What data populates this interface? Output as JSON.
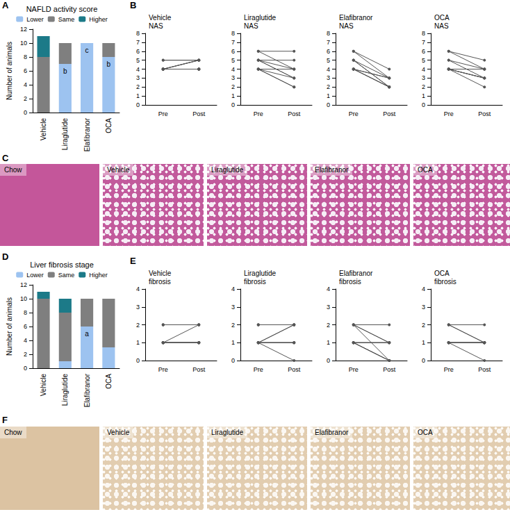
{
  "chart_data": [
    {
      "panel": "A",
      "type": "bar",
      "stacked": true,
      "title": "NAFLD activity score",
      "y_label": "Number of animals",
      "categories": [
        "Vehicle",
        "Liraglutide",
        "Elafibranor",
        "OCA"
      ],
      "series": [
        {
          "name": "Lower",
          "color": "#9dc3f0",
          "values": [
            0,
            7,
            10,
            8
          ],
          "annotations": [
            null,
            "b",
            "c",
            "b"
          ]
        },
        {
          "name": "Same",
          "color": "#7f7f7f",
          "values": [
            8,
            3,
            0,
            2
          ]
        },
        {
          "name": "Higher",
          "color": "#1c7a88",
          "values": [
            3,
            0,
            0,
            0
          ]
        }
      ],
      "ylim": [
        0,
        12
      ],
      "yticks": [
        0,
        2,
        4,
        6,
        8,
        10,
        12
      ],
      "grid": false,
      "legend": "top"
    },
    {
      "panel": "B",
      "type": "line",
      "title": "Vehicle\nNAS",
      "categories": [
        "Pre",
        "Post"
      ],
      "color": "#555555",
      "marker": "circle",
      "series": [
        {
          "values": [
            5,
            5
          ]
        },
        {
          "values": [
            5,
            5
          ]
        },
        {
          "values": [
            4,
            5
          ]
        },
        {
          "values": [
            4,
            5
          ]
        },
        {
          "values": [
            4,
            5
          ]
        },
        {
          "values": [
            4,
            4
          ]
        },
        {
          "values": [
            4,
            4
          ]
        },
        {
          "values": [
            4,
            4
          ]
        },
        {
          "values": [
            4,
            4
          ]
        },
        {
          "values": [
            4,
            4
          ]
        },
        {
          "values": [
            4,
            4
          ]
        }
      ],
      "ylim": [
        0,
        8
      ],
      "yticks": [
        0,
        1,
        2,
        3,
        4,
        5,
        6,
        7,
        8
      ],
      "grid": false
    },
    {
      "type": "line",
      "title": "Liraglutide\nNAS",
      "categories": [
        "Pre",
        "Post"
      ],
      "color": "#555555",
      "marker": "circle",
      "series": [
        {
          "values": [
            6,
            6
          ]
        },
        {
          "values": [
            6,
            4
          ]
        },
        {
          "values": [
            5,
            5
          ]
        },
        {
          "values": [
            5,
            4
          ]
        },
        {
          "values": [
            5,
            3
          ]
        },
        {
          "values": [
            4,
            4
          ]
        },
        {
          "values": [
            4,
            3
          ]
        },
        {
          "values": [
            4,
            2
          ]
        },
        {
          "values": [
            4,
            2
          ]
        },
        {
          "values": [
            5,
            3
          ]
        }
      ],
      "ylim": [
        0,
        8
      ],
      "yticks": [
        0,
        1,
        2,
        3,
        4,
        5,
        6,
        7,
        8
      ],
      "grid": false
    },
    {
      "type": "line",
      "title": "Elafibranor\nNAS",
      "categories": [
        "Pre",
        "Post"
      ],
      "color": "#555555",
      "marker": "circle",
      "series": [
        {
          "values": [
            6,
            4
          ]
        },
        {
          "values": [
            6,
            3
          ]
        },
        {
          "values": [
            5,
            3
          ]
        },
        {
          "values": [
            5,
            2
          ]
        },
        {
          "values": [
            5,
            2
          ]
        },
        {
          "values": [
            4,
            3
          ]
        },
        {
          "values": [
            4,
            2
          ]
        },
        {
          "values": [
            4,
            2
          ]
        },
        {
          "values": [
            4,
            2
          ]
        },
        {
          "values": [
            4,
            3
          ]
        }
      ],
      "ylim": [
        0,
        8
      ],
      "yticks": [
        0,
        1,
        2,
        3,
        4,
        5,
        6,
        7,
        8
      ],
      "grid": false
    },
    {
      "type": "line",
      "title": "OCA\nNAS",
      "categories": [
        "Pre",
        "Post"
      ],
      "color": "#555555",
      "marker": "circle",
      "series": [
        {
          "values": [
            6,
            5
          ]
        },
        {
          "values": [
            6,
            4
          ]
        },
        {
          "values": [
            5,
            4
          ]
        },
        {
          "values": [
            5,
            3
          ]
        },
        {
          "values": [
            4,
            3
          ]
        },
        {
          "values": [
            4,
            3
          ]
        },
        {
          "values": [
            4,
            2
          ]
        },
        {
          "values": [
            4,
            3
          ]
        },
        {
          "values": [
            4,
            4
          ]
        },
        {
          "values": [
            4,
            4
          ]
        }
      ],
      "ylim": [
        0,
        8
      ],
      "yticks": [
        0,
        1,
        2,
        3,
        4,
        5,
        6,
        7,
        8
      ],
      "grid": false
    },
    {
      "panel": "D",
      "type": "bar",
      "stacked": true,
      "title": "Liver fibrosis stage",
      "y_label": "Number of animals",
      "categories": [
        "Vehicle",
        "Liraglutide",
        "Elafibranor",
        "OCA"
      ],
      "series": [
        {
          "name": "Lower",
          "color": "#9dc3f0",
          "values": [
            0,
            1,
            6,
            3
          ],
          "annotations": [
            null,
            null,
            "a",
            null
          ]
        },
        {
          "name": "Same",
          "color": "#7f7f7f",
          "values": [
            10,
            7,
            4,
            7
          ]
        },
        {
          "name": "Higher",
          "color": "#1c7a88",
          "values": [
            1,
            2,
            0,
            0
          ]
        }
      ],
      "ylim": [
        0,
        12
      ],
      "yticks": [
        0,
        2,
        4,
        6,
        8,
        10,
        12
      ],
      "grid": false,
      "legend": "top"
    },
    {
      "panel": "E",
      "type": "line",
      "title": "Vehicle\nfibrosis",
      "categories": [
        "Pre",
        "Post"
      ],
      "color": "#555555",
      "marker": "circle",
      "series": [
        {
          "values": [
            2,
            2
          ]
        },
        {
          "values": [
            2,
            2
          ]
        },
        {
          "values": [
            2,
            2
          ]
        },
        {
          "values": [
            1,
            2
          ]
        },
        {
          "values": [
            1,
            1
          ]
        },
        {
          "values": [
            1,
            1
          ]
        },
        {
          "values": [
            1,
            1
          ]
        },
        {
          "values": [
            1,
            1
          ]
        },
        {
          "values": [
            1,
            1
          ]
        },
        {
          "values": [
            1,
            1
          ]
        },
        {
          "values": [
            1,
            1
          ]
        }
      ],
      "ylim": [
        0,
        4
      ],
      "yticks": [
        0,
        1,
        2,
        3,
        4
      ],
      "grid": false
    },
    {
      "type": "line",
      "title": "Liraglutide\nfibrosis",
      "categories": [
        "Pre",
        "Post"
      ],
      "color": "#555555",
      "marker": "circle",
      "series": [
        {
          "values": [
            2,
            2
          ]
        },
        {
          "values": [
            2,
            2
          ]
        },
        {
          "values": [
            1,
            2
          ]
        },
        {
          "values": [
            1,
            2
          ]
        },
        {
          "values": [
            1,
            1
          ]
        },
        {
          "values": [
            1,
            1
          ]
        },
        {
          "values": [
            1,
            1
          ]
        },
        {
          "values": [
            1,
            1
          ]
        },
        {
          "values": [
            2,
            2
          ]
        },
        {
          "values": [
            1,
            0
          ]
        }
      ],
      "ylim": [
        0,
        4
      ],
      "yticks": [
        0,
        1,
        2,
        3,
        4
      ],
      "grid": false
    },
    {
      "type": "line",
      "title": "Elafibranor\nfibrosis",
      "categories": [
        "Pre",
        "Post"
      ],
      "color": "#555555",
      "marker": "circle",
      "series": [
        {
          "values": [
            2,
            2
          ]
        },
        {
          "values": [
            2,
            1
          ]
        },
        {
          "values": [
            2,
            1
          ]
        },
        {
          "values": [
            2,
            0
          ]
        },
        {
          "values": [
            1,
            1
          ]
        },
        {
          "values": [
            1,
            1
          ]
        },
        {
          "values": [
            1,
            1
          ]
        },
        {
          "values": [
            1,
            0
          ]
        },
        {
          "values": [
            1,
            0
          ]
        },
        {
          "values": [
            1,
            0
          ]
        }
      ],
      "ylim": [
        0,
        4
      ],
      "yticks": [
        0,
        1,
        2,
        3,
        4
      ],
      "grid": false
    },
    {
      "type": "line",
      "title": "OCA\nfibrosis",
      "categories": [
        "Pre",
        "Post"
      ],
      "color": "#555555",
      "marker": "circle",
      "series": [
        {
          "values": [
            2,
            2
          ]
        },
        {
          "values": [
            2,
            1
          ]
        },
        {
          "values": [
            2,
            1
          ]
        },
        {
          "values": [
            1,
            1
          ]
        },
        {
          "values": [
            1,
            1
          ]
        },
        {
          "values": [
            1,
            1
          ]
        },
        {
          "values": [
            1,
            1
          ]
        },
        {
          "values": [
            1,
            1
          ]
        },
        {
          "values": [
            1,
            1
          ]
        },
        {
          "values": [
            1,
            0
          ]
        }
      ],
      "ylim": [
        0,
        4
      ],
      "yticks": [
        0,
        1,
        2,
        3,
        4
      ],
      "grid": false
    }
  ],
  "images": [
    {
      "panel": "C",
      "tiles": [
        "Chow",
        "Vehicle",
        "Liraglutide",
        "Elafibranor",
        "OCA"
      ]
    },
    {
      "panel": "F",
      "tiles": [
        "Chow",
        "Vehicle",
        "Liraglutide",
        "Elafibranor",
        "OCA"
      ]
    }
  ]
}
